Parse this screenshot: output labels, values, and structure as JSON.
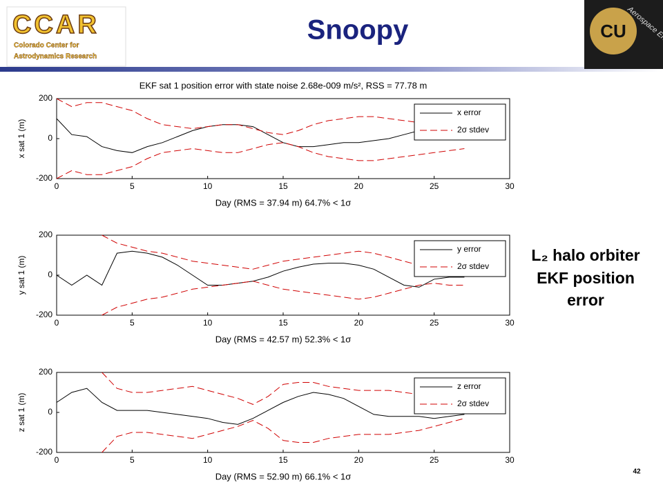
{
  "slide": {
    "title": "Snoopy",
    "logo_left": {
      "name": "CCAR",
      "line1": "Colorado Center for",
      "line2": "Astrodynamics Research"
    },
    "logo_right": {
      "name": "CU",
      "text": "Aerospace Engineering"
    },
    "side_text": [
      "L₂ halo orbiter",
      "EKF position",
      "error"
    ],
    "page_number": "42"
  },
  "chart_data": [
    {
      "type": "line",
      "title": "EKF sat 1 position error with state noise 2.68e-009 m/s², RSS = 77.78 m",
      "x_label": "Day (RMS = 37.94 m) 64.7% < 1σ",
      "y_label": "x sat 1 (m)",
      "x": [
        0,
        1,
        2,
        3,
        4,
        5,
        6,
        7,
        8,
        9,
        10,
        11,
        12,
        13,
        14,
        15,
        16,
        17,
        18,
        19,
        20,
        21,
        22,
        23,
        24,
        25,
        26,
        27
      ],
      "series": [
        {
          "name": "x error",
          "color": "#000000",
          "values": [
            100,
            20,
            10,
            -40,
            -60,
            -70,
            -40,
            -20,
            10,
            40,
            60,
            70,
            70,
            60,
            20,
            -20,
            -40,
            -40,
            -30,
            -20,
            -20,
            -10,
            0,
            20,
            40,
            40,
            50,
            30
          ]
        },
        {
          "name": "2σ stdev",
          "color": "#d00000",
          "values": [
            200,
            160,
            180,
            180,
            160,
            140,
            100,
            70,
            60,
            50,
            60,
            70,
            70,
            50,
            30,
            20,
            40,
            70,
            90,
            100,
            110,
            110,
            100,
            90,
            80,
            70,
            60,
            50
          ]
        }
      ],
      "xlim": [
        0,
        30
      ],
      "xticks": [
        0,
        5,
        10,
        15,
        20,
        25,
        30
      ],
      "ylim": [
        -200,
        200
      ],
      "yticks": [
        -200,
        0,
        200
      ]
    },
    {
      "type": "line",
      "x_label": "Day (RMS = 42.57 m) 52.3% < 1σ",
      "y_label": "y sat 1 (m)",
      "x": [
        0,
        1,
        2,
        3,
        4,
        5,
        6,
        7,
        8,
        9,
        10,
        11,
        12,
        13,
        14,
        15,
        16,
        17,
        18,
        19,
        20,
        21,
        22,
        23,
        24,
        25,
        26,
        27
      ],
      "series": [
        {
          "name": "y error",
          "color": "#000000",
          "values": [
            0,
            -50,
            0,
            -50,
            110,
            120,
            110,
            90,
            50,
            0,
            -50,
            -50,
            -40,
            -30,
            -10,
            20,
            40,
            55,
            60,
            60,
            50,
            30,
            -10,
            -50,
            -60,
            -20,
            -10,
            -10
          ]
        },
        {
          "name": "2σ stdev",
          "color": "#d00000",
          "values": [
            null,
            null,
            null,
            200,
            160,
            140,
            120,
            110,
            90,
            70,
            60,
            50,
            40,
            30,
            50,
            70,
            80,
            90,
            100,
            110,
            120,
            110,
            90,
            70,
            50,
            40,
            50,
            50
          ]
        }
      ],
      "xlim": [
        0,
        30
      ],
      "xticks": [
        0,
        5,
        10,
        15,
        20,
        25,
        30
      ],
      "ylim": [
        -200,
        200
      ],
      "yticks": [
        -200,
        0,
        200
      ]
    },
    {
      "type": "line",
      "x_label": "Day (RMS = 52.90 m) 66.1% < 1σ",
      "y_label": "z sat 1 (m)",
      "x": [
        0,
        1,
        2,
        3,
        4,
        5,
        6,
        7,
        8,
        9,
        10,
        11,
        12,
        13,
        14,
        15,
        16,
        17,
        18,
        19,
        20,
        21,
        22,
        23,
        24,
        25,
        26,
        27
      ],
      "series": [
        {
          "name": "z error",
          "color": "#000000",
          "values": [
            50,
            100,
            120,
            50,
            10,
            10,
            10,
            0,
            -10,
            -20,
            -30,
            -50,
            -60,
            -30,
            10,
            50,
            80,
            100,
            90,
            70,
            30,
            -10,
            -20,
            -20,
            -20,
            -30,
            -20,
            -10
          ]
        },
        {
          "name": "2σ stdev",
          "color": "#d00000",
          "values": [
            null,
            null,
            null,
            200,
            120,
            100,
            100,
            110,
            120,
            130,
            110,
            90,
            70,
            40,
            80,
            140,
            150,
            150,
            130,
            120,
            110,
            110,
            110,
            100,
            90,
            70,
            50,
            30
          ]
        }
      ],
      "xlim": [
        0,
        30
      ],
      "xticks": [
        0,
        5,
        10,
        15,
        20,
        25,
        30
      ],
      "ylim": [
        -200,
        200
      ],
      "yticks": [
        -200,
        0,
        200
      ]
    }
  ]
}
